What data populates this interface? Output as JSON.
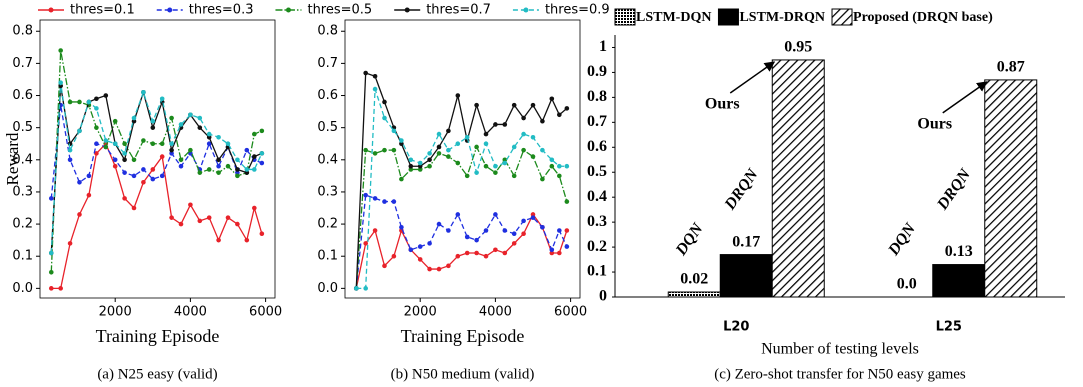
{
  "chart_data": [
    {
      "type": "line",
      "caption": "(a) N25 easy (valid)",
      "xlabel": "Training Episode",
      "ylabel": "Reward",
      "x": [
        300,
        550,
        800,
        1050,
        1300,
        1500,
        1750,
        2000,
        2250,
        2500,
        2750,
        3000,
        3250,
        3500,
        3750,
        4000,
        4250,
        4500,
        4750,
        5000,
        5250,
        5500,
        5700,
        5900
      ],
      "series": [
        {
          "name": "thres=0.1",
          "color": "#e8222a",
          "linestyle": "solid",
          "values": [
            0.0,
            0.0,
            0.14,
            0.23,
            0.29,
            0.42,
            0.45,
            0.38,
            0.28,
            0.25,
            0.33,
            0.37,
            0.41,
            0.22,
            0.2,
            0.26,
            0.21,
            0.22,
            0.15,
            0.22,
            0.2,
            0.15,
            0.25,
            0.17
          ]
        },
        {
          "name": "thres=0.3",
          "color": "#1f2fe0",
          "linestyle": "dashed",
          "values": [
            0.28,
            0.57,
            0.4,
            0.33,
            0.35,
            0.45,
            0.44,
            0.4,
            0.36,
            0.35,
            0.37,
            0.34,
            0.35,
            0.42,
            0.38,
            0.42,
            0.37,
            0.45,
            0.38,
            0.44,
            0.36,
            0.43,
            0.4,
            0.39
          ]
        },
        {
          "name": "thres=0.5",
          "color": "#1c8a1c",
          "linestyle": "dashdot",
          "values": [
            0.05,
            0.74,
            0.58,
            0.58,
            0.57,
            0.5,
            0.44,
            0.52,
            0.45,
            0.4,
            0.46,
            0.45,
            0.45,
            0.53,
            0.4,
            0.43,
            0.36,
            0.37,
            0.36,
            0.38,
            0.35,
            0.36,
            0.48,
            0.49
          ]
        },
        {
          "name": "thres=0.7",
          "color": "#111111",
          "linestyle": "solid",
          "values": [
            0.11,
            0.63,
            0.45,
            0.49,
            0.58,
            0.59,
            0.6,
            0.45,
            0.4,
            0.52,
            0.61,
            0.5,
            0.58,
            0.43,
            0.5,
            0.54,
            0.5,
            0.47,
            0.4,
            0.44,
            0.37,
            0.36,
            0.41,
            0.42
          ]
        },
        {
          "name": "thres=0.9",
          "color": "#22bcc4",
          "linestyle": "dashed",
          "values": [
            0.11,
            0.64,
            0.43,
            0.49,
            0.58,
            0.56,
            0.46,
            0.45,
            0.42,
            0.53,
            0.61,
            0.52,
            0.59,
            0.45,
            0.51,
            0.54,
            0.53,
            0.48,
            0.47,
            0.45,
            0.4,
            0.37,
            0.37,
            0.42
          ]
        }
      ],
      "xlim": [
        0,
        6250
      ],
      "ylim": [
        -0.03,
        0.835
      ],
      "xticks": [
        2000,
        4000,
        6000
      ],
      "yticks": [
        {
          "value": 0,
          "label": "0.0"
        },
        0.1,
        0.2,
        0.3,
        0.4,
        0.5,
        0.6,
        0.7,
        0.8
      ]
    },
    {
      "type": "line",
      "caption": "(b) N50 medium (valid)",
      "xlabel": "Training Episode",
      "x": [
        300,
        550,
        800,
        1050,
        1300,
        1500,
        1750,
        2000,
        2250,
        2500,
        2750,
        3000,
        3250,
        3500,
        3750,
        4000,
        4250,
        4500,
        4750,
        5000,
        5250,
        5500,
        5700,
        5900
      ],
      "series": [
        {
          "color": "#e8222a",
          "linestyle": "solid",
          "values": [
            0.0,
            0.14,
            0.18,
            0.07,
            0.1,
            0.18,
            0.12,
            0.09,
            0.06,
            0.06,
            0.07,
            0.1,
            0.11,
            0.11,
            0.1,
            0.12,
            0.11,
            0.14,
            0.17,
            0.23,
            0.19,
            0.11,
            0.11,
            0.18
          ]
        },
        {
          "color": "#1f2fe0",
          "linestyle": "dashed",
          "values": [
            0.0,
            0.29,
            0.28,
            0.27,
            0.27,
            0.19,
            0.12,
            0.13,
            0.14,
            0.2,
            0.18,
            0.23,
            0.16,
            0.15,
            0.18,
            0.23,
            0.18,
            0.17,
            0.21,
            0.22,
            0.19,
            0.12,
            0.18,
            0.13
          ]
        },
        {
          "color": "#1c8a1c",
          "linestyle": "dashdot",
          "values": [
            0.0,
            0.43,
            0.42,
            0.43,
            0.43,
            0.34,
            0.37,
            0.37,
            0.38,
            0.42,
            0.41,
            0.39,
            0.35,
            0.44,
            0.38,
            0.36,
            0.4,
            0.35,
            0.43,
            0.41,
            0.34,
            0.38,
            0.35,
            0.27
          ]
        },
        {
          "color": "#111111",
          "linestyle": "solid",
          "values": [
            0.0,
            0.67,
            0.66,
            0.58,
            0.5,
            0.45,
            0.38,
            0.38,
            0.4,
            0.44,
            0.49,
            0.6,
            0.46,
            0.57,
            0.48,
            0.51,
            0.51,
            0.57,
            0.53,
            0.57,
            0.52,
            0.59,
            0.54,
            0.56
          ]
        },
        {
          "color": "#22bcc4",
          "linestyle": "dashed",
          "values": [
            0.0,
            0.0,
            0.62,
            0.53,
            0.49,
            0.46,
            0.4,
            0.39,
            0.42,
            0.48,
            0.43,
            0.45,
            0.47,
            0.36,
            0.45,
            0.38,
            0.39,
            0.44,
            0.48,
            0.47,
            0.43,
            0.4,
            0.38,
            0.38
          ]
        }
      ],
      "xlim": [
        0,
        6250
      ],
      "ylim": [
        -0.03,
        0.835
      ],
      "xticks": [
        2000,
        4000,
        6000
      ],
      "yticks": [
        {
          "value": 0,
          "label": "0.0"
        },
        0.1,
        0.2,
        0.3,
        0.4,
        0.5,
        0.6,
        0.7,
        0.8
      ]
    },
    {
      "type": "bar",
      "caption": "(c) Zero-shot transfer for N50 easy games",
      "xlabel": "Number of testing levels",
      "categories": [
        "L20",
        "L25"
      ],
      "series": [
        {
          "name": "LSTM-DQN",
          "pattern": "dotted",
          "values": [
            0.02,
            0.0
          ],
          "value_labels": [
            "0.02",
            "0.0"
          ]
        },
        {
          "name": "LSTM-DRQN",
          "pattern": "solid",
          "values": [
            0.17,
            0.13
          ]
        },
        {
          "name": "Proposed (DRQN base)",
          "pattern": "hatched",
          "values": [
            0.95,
            0.87
          ]
        }
      ],
      "annotations": [
        "DQN",
        "DRQN",
        "Ours",
        "DQN",
        "DRQN",
        "Ours"
      ],
      "ylim": [
        0,
        1.05
      ],
      "yticks": [
        0,
        0.1,
        0.2,
        0.3,
        0.4,
        0.5,
        0.6,
        0.7,
        0.8,
        0.9,
        1
      ]
    }
  ]
}
